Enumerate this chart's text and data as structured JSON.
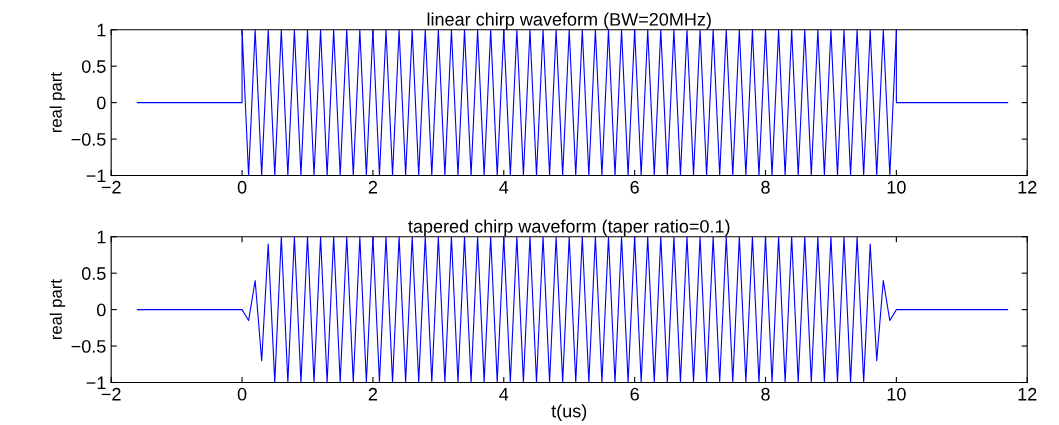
{
  "chart_data": [
    {
      "type": "line",
      "title": "linear chirp waveform (BW=20MHz)",
      "ylabel": "real part",
      "xlim": [
        -2,
        12
      ],
      "xticks": [
        -2,
        0,
        2,
        4,
        6,
        8,
        10,
        12
      ],
      "ylim": [
        -1,
        1
      ],
      "yticks": [
        -1,
        -0.5,
        0,
        0.5,
        1
      ],
      "grid": false,
      "marker": "none",
      "line_style": "solid",
      "series": [
        {
          "color": "#0000ff",
          "x": [
            -1.6,
            0,
            0,
            0.1,
            0.2,
            0.3,
            0.4,
            0.5,
            0.6,
            0.7,
            0.8,
            0.9,
            1,
            1.1,
            1.2,
            1.3,
            1.4,
            1.5,
            1.6,
            1.7,
            1.8,
            1.9,
            2,
            2.1,
            2.2,
            2.3,
            2.4,
            2.5,
            2.6,
            2.7,
            2.8,
            2.9,
            3,
            3.1,
            3.2,
            3.3,
            3.4,
            3.5,
            3.6,
            3.7,
            3.8,
            3.9,
            4,
            4.1,
            4.2,
            4.3,
            4.4,
            4.5,
            4.6,
            4.7,
            4.8,
            4.9,
            5,
            5.1,
            5.2,
            5.3,
            5.4,
            5.5,
            5.6,
            5.7,
            5.8,
            5.9,
            6,
            6.1,
            6.2,
            6.3,
            6.4,
            6.5,
            6.6,
            6.7,
            6.8,
            6.9,
            7,
            7.1,
            7.2,
            7.3,
            7.4,
            7.5,
            7.6,
            7.7,
            7.8,
            7.9,
            8,
            8.1,
            8.2,
            8.3,
            8.4,
            8.5,
            8.6,
            8.7,
            8.8,
            8.9,
            9,
            9.1,
            9.2,
            9.3,
            9.4,
            9.5,
            9.6,
            9.7,
            9.8,
            9.9,
            10,
            10,
            11.7
          ],
          "values": [
            0,
            0,
            1,
            -1,
            1,
            -1,
            1,
            -1,
            1,
            -1,
            1,
            -1,
            1,
            -1,
            1,
            -1,
            1,
            -1,
            1,
            -1,
            1,
            -1,
            1,
            -1,
            1,
            -1,
            1,
            -1,
            1,
            -1,
            1,
            -1,
            1,
            -1,
            1,
            -1,
            1,
            -1,
            1,
            -1,
            1,
            -1,
            1,
            -1,
            1,
            -1,
            1,
            -1,
            1,
            -1,
            1,
            -1,
            1,
            -1,
            1,
            -1,
            1,
            -1,
            1,
            -1,
            1,
            -1,
            1,
            -1,
            1,
            -1,
            1,
            -1,
            1,
            -1,
            1,
            -1,
            1,
            -1,
            1,
            -1,
            1,
            -1,
            1,
            -1,
            1,
            -1,
            1,
            -1,
            1,
            -1,
            1,
            -1,
            1,
            -1,
            1,
            -1,
            1,
            -1,
            1,
            -1,
            1,
            -1,
            1,
            -1,
            1,
            -1,
            1,
            0,
            0
          ]
        }
      ]
    },
    {
      "type": "line",
      "title": "tapered chirp waveform (taper ratio=0.1)",
      "ylabel": "real part",
      "xlabel": "t(us)",
      "xlim": [
        -2,
        12
      ],
      "xticks": [
        -2,
        0,
        2,
        4,
        6,
        8,
        10,
        12
      ],
      "ylim": [
        -1,
        1
      ],
      "yticks": [
        -1,
        -0.5,
        0,
        0.5,
        1
      ],
      "grid": false,
      "marker": "none",
      "line_style": "solid",
      "series": [
        {
          "color": "#0000ff",
          "x": [
            -1.6,
            0,
            0.1,
            0.2,
            0.3,
            0.4,
            0.5,
            0.6,
            0.7,
            0.8,
            0.9,
            1,
            1.1,
            1.2,
            1.3,
            1.4,
            1.5,
            1.6,
            1.7,
            1.8,
            1.9,
            2,
            2.1,
            2.2,
            2.3,
            2.4,
            2.5,
            2.6,
            2.7,
            2.8,
            2.9,
            3,
            3.1,
            3.2,
            3.3,
            3.4,
            3.5,
            3.6,
            3.7,
            3.8,
            3.9,
            4,
            4.1,
            4.2,
            4.3,
            4.4,
            4.5,
            4.6,
            4.7,
            4.8,
            4.9,
            5,
            5.1,
            5.2,
            5.3,
            5.4,
            5.5,
            5.6,
            5.7,
            5.8,
            5.9,
            6,
            6.1,
            6.2,
            6.3,
            6.4,
            6.5,
            6.6,
            6.7,
            6.8,
            6.9,
            7,
            7.1,
            7.2,
            7.3,
            7.4,
            7.5,
            7.6,
            7.7,
            7.8,
            7.9,
            8,
            8.1,
            8.2,
            8.3,
            8.4,
            8.5,
            8.6,
            8.7,
            8.8,
            8.9,
            9,
            9.1,
            9.2,
            9.3,
            9.4,
            9.5,
            9.6,
            9.7,
            9.8,
            9.9,
            10,
            11.7
          ],
          "values": [
            0,
            0,
            -0.15,
            0.4,
            -0.7,
            0.9,
            -1,
            1,
            -1,
            1,
            -1,
            1,
            -1,
            1,
            -1,
            1,
            -1,
            1,
            -1,
            1,
            -1,
            1,
            -1,
            1,
            -1,
            1,
            -1,
            1,
            -1,
            1,
            -1,
            1,
            -1,
            1,
            -1,
            1,
            -1,
            1,
            -1,
            1,
            -1,
            1,
            -1,
            1,
            -1,
            1,
            -1,
            1,
            -1,
            1,
            -1,
            1,
            -1,
            1,
            -1,
            1,
            -1,
            1,
            -1,
            1,
            -1,
            1,
            -1,
            1,
            -1,
            1,
            -1,
            1,
            -1,
            1,
            -1,
            1,
            -1,
            1,
            -1,
            1,
            -1,
            1,
            -1,
            1,
            -1,
            1,
            -1,
            1,
            -1,
            1,
            -1,
            1,
            -1,
            1,
            -1,
            1,
            -1,
            1,
            -1,
            1,
            -1,
            0.9,
            -0.7,
            0.4,
            -0.15,
            0,
            0
          ]
        }
      ]
    }
  ]
}
